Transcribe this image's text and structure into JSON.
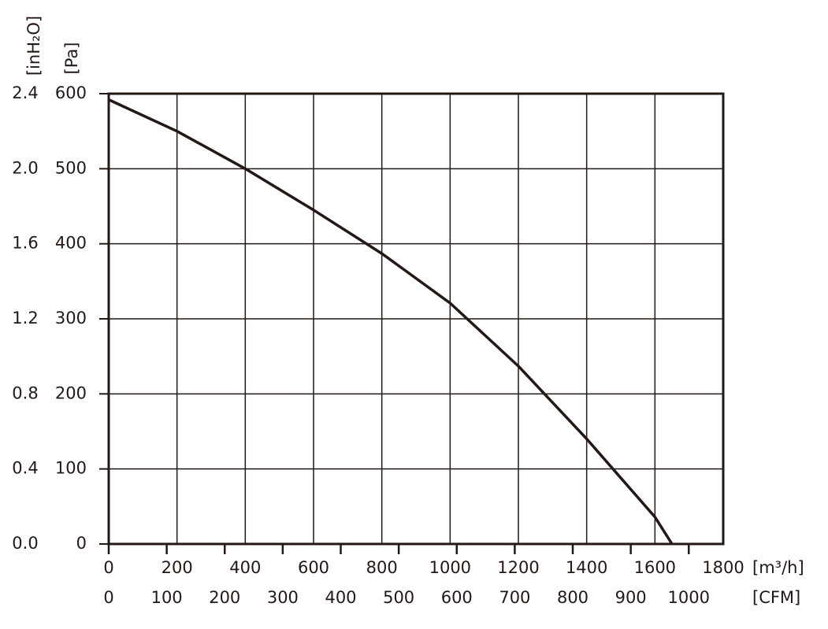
{
  "chart_data": {
    "type": "line",
    "xlabel": "[m³/h]",
    "x2label": "[CFM]",
    "ylabel": "[Pa]",
    "y2label": "[inH₂O]",
    "xlim": [
      0,
      1800
    ],
    "xticks": [
      0,
      200,
      400,
      600,
      800,
      1000,
      1200,
      1400,
      1600,
      1800
    ],
    "x2lim": [
      0,
      1059.4
    ],
    "x2ticks": [
      0,
      100,
      200,
      300,
      400,
      500,
      600,
      700,
      800,
      900,
      1000
    ],
    "ylim": [
      0,
      600
    ],
    "yticks": [
      0,
      100,
      200,
      300,
      400,
      500,
      600
    ],
    "y2lim": [
      0,
      2.4
    ],
    "y2ticks": [
      {
        "value": 0,
        "label": "0.0"
      },
      {
        "value": 0.4,
        "label": "0.4"
      },
      {
        "value": 0.8,
        "label": "0.8"
      },
      {
        "value": 1.2,
        "label": "1.2"
      },
      {
        "value": 1.6,
        "label": "1.6"
      },
      {
        "value": 2.0,
        "label": "2.0"
      },
      {
        "value": 2.4,
        "label": "2.4"
      }
    ],
    "grid": true,
    "series": [
      {
        "color": "#231815",
        "x": [
          0,
          200,
          400,
          600,
          800,
          1000,
          1200,
          1400,
          1600,
          1650
        ],
        "values": [
          592,
          550,
          500,
          445,
          387,
          321,
          237,
          140,
          36,
          0
        ]
      }
    ]
  }
}
